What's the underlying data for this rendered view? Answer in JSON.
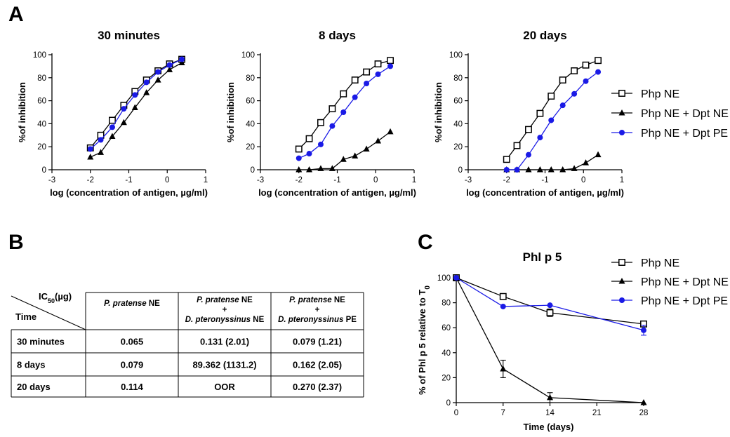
{
  "panel_letters": {
    "a": "A",
    "b": "B",
    "c": "C"
  },
  "colors": {
    "php_ne": "#000000",
    "dpt_ne": "#000000",
    "dpt_pe": "#1a1ae6",
    "table_border": "#000000"
  },
  "legend_a": [
    {
      "key": "php_ne",
      "label": "Php NE",
      "marker": "open-square"
    },
    {
      "key": "dpt_ne",
      "label": "Php NE + Dpt NE",
      "marker": "triangle"
    },
    {
      "key": "dpt_pe",
      "label": "Php NE + Dpt PE",
      "marker": "circle"
    }
  ],
  "legend_c": [
    {
      "key": "php_ne",
      "label": "Php NE",
      "marker": "open-square"
    },
    {
      "key": "dpt_ne",
      "label": "Php NE + Dpt NE",
      "marker": "triangle"
    },
    {
      "key": "dpt_pe",
      "label": "Php NE + Dpt PE",
      "marker": "circle"
    }
  ],
  "table": {
    "corner_top": "IC",
    "corner_sub": "50",
    "corner_unit": "(µg)",
    "corner_bottom": "Time",
    "headers": [
      {
        "line1_it": "P. pratense",
        "line1": " NE",
        "line2": "",
        "line3_it": "",
        "line3": ""
      },
      {
        "line1_it": "P. pratense",
        "line1": " NE",
        "line2": "+",
        "line3_it": "D. pteronyssinus",
        "line3": " NE"
      },
      {
        "line1_it": "P. pratense",
        "line1": " NE",
        "line2": "+",
        "line3_it": "D. pteronyssinus",
        "line3": " PE"
      }
    ],
    "rows": [
      {
        "time": "30 minutes",
        "cells": [
          "0.065",
          "0.131 (2.01)",
          "0.079 (1.21)"
        ]
      },
      {
        "time": "8 days",
        "cells": [
          "0.079",
          "89.362  (1131.2)",
          "0.162  (2.05)"
        ]
      },
      {
        "time": "20 days",
        "cells": [
          "0.114",
          "OOR",
          "0.270  (2.37)"
        ]
      }
    ]
  },
  "chart_data": [
    {
      "type": "line",
      "panel": "A",
      "title": "30 minutes",
      "xlabel": "log (concentration of antigen, µg/ml)",
      "ylabel": "%of inhibition",
      "xlim": [
        -3,
        1
      ],
      "ylim": [
        0,
        100
      ],
      "xticks": [
        "-3",
        "-2",
        "-1",
        "0",
        "1"
      ],
      "yticks": [
        "0",
        "20",
        "40",
        "60",
        "80",
        "100"
      ],
      "series": [
        {
          "key": "php_ne",
          "name": "Php NE",
          "x": [
            -2,
            -1.73,
            -1.43,
            -1.13,
            -0.84,
            -0.54,
            -0.24,
            0.06,
            0.38
          ],
          "y": [
            19,
            30,
            43,
            56,
            68,
            78,
            86,
            92,
            96
          ]
        },
        {
          "key": "dpt_ne",
          "name": "Php NE + Dpt NE",
          "x": [
            -2,
            -1.73,
            -1.43,
            -1.13,
            -0.84,
            -0.54,
            -0.24,
            0.06,
            0.38
          ],
          "y": [
            11,
            15,
            29,
            41,
            54,
            67,
            78,
            87,
            93
          ]
        },
        {
          "key": "dpt_pe",
          "name": "Php NE + Dpt PE",
          "x": [
            -2,
            -1.73,
            -1.43,
            -1.13,
            -0.84,
            -0.54,
            -0.24,
            0.06,
            0.38
          ],
          "y": [
            18,
            26,
            37,
            53,
            65,
            76,
            85,
            91,
            96
          ]
        }
      ]
    },
    {
      "type": "line",
      "panel": "A",
      "title": "8 days",
      "xlabel": "log (concentration of antigen, µg/ml)",
      "ylabel": "%of inhibition",
      "xlim": [
        -3,
        1
      ],
      "ylim": [
        0,
        100
      ],
      "xticks": [
        "-3",
        "-2",
        "-1",
        "0",
        "1"
      ],
      "yticks": [
        "0",
        "20",
        "40",
        "60",
        "80",
        "100"
      ],
      "series": [
        {
          "key": "php_ne",
          "name": "Php NE",
          "x": [
            -2,
            -1.73,
            -1.43,
            -1.13,
            -0.84,
            -0.54,
            -0.24,
            0.06,
            0.38
          ],
          "y": [
            18,
            27,
            41,
            53,
            66,
            78,
            85,
            92,
            95
          ]
        },
        {
          "key": "dpt_ne",
          "name": "Php NE + Dpt NE",
          "x": [
            -2,
            -1.73,
            -1.43,
            -1.13,
            -0.84,
            -0.54,
            -0.24,
            0.06,
            0.38
          ],
          "y": [
            0,
            0,
            1,
            1,
            9,
            12,
            18,
            25,
            33
          ]
        },
        {
          "key": "dpt_pe",
          "name": "Php NE + Dpt PE",
          "x": [
            -2,
            -1.73,
            -1.43,
            -1.13,
            -0.84,
            -0.54,
            -0.24,
            0.06,
            0.38
          ],
          "y": [
            10,
            14,
            22,
            38,
            50,
            63,
            75,
            83,
            90
          ]
        }
      ]
    },
    {
      "type": "line",
      "panel": "A",
      "title": "20 days",
      "xlabel": "log (concentration of antigen, µg/ml)",
      "ylabel": "%of inhibition",
      "xlim": [
        -3,
        1
      ],
      "ylim": [
        0,
        100
      ],
      "xticks": [
        "-3",
        "-2",
        "-1",
        "0",
        "1"
      ],
      "yticks": [
        "0",
        "20",
        "40",
        "60",
        "80",
        "100"
      ],
      "series": [
        {
          "key": "php_ne",
          "name": "Php NE",
          "x": [
            -2,
            -1.73,
            -1.43,
            -1.13,
            -0.84,
            -0.54,
            -0.24,
            0.06,
            0.38
          ],
          "y": [
            9,
            21,
            35,
            49,
            64,
            78,
            86,
            91,
            95
          ]
        },
        {
          "key": "dpt_ne",
          "name": "Php NE + Dpt NE",
          "x": [
            -2,
            -1.73,
            -1.43,
            -1.13,
            -0.84,
            -0.54,
            -0.24,
            0.06,
            0.38
          ],
          "y": [
            0,
            0,
            0,
            0,
            0,
            0,
            1,
            6,
            13
          ]
        },
        {
          "key": "dpt_pe",
          "name": "Php NE + Dpt PE",
          "x": [
            -2,
            -1.73,
            -1.43,
            -1.13,
            -0.84,
            -0.54,
            -0.24,
            0.06,
            0.38
          ],
          "y": [
            0,
            0,
            13,
            28,
            43,
            56,
            66,
            77,
            85
          ]
        }
      ]
    },
    {
      "type": "line",
      "panel": "C",
      "title": "Phl p 5",
      "xlabel": "Time (days)",
      "ylabel": "% of Phl p 5 relative to T",
      "ylabel_sub": "0",
      "xlim": [
        0,
        28
      ],
      "ylim": [
        0,
        100
      ],
      "xticks": [
        "0",
        "7",
        "14",
        "21",
        "28"
      ],
      "yticks": [
        "0",
        "20",
        "40",
        "60",
        "80",
        "100"
      ],
      "series": [
        {
          "key": "php_ne",
          "name": "Php NE",
          "x": [
            0,
            7,
            14,
            28
          ],
          "y": [
            100,
            85,
            72,
            63
          ],
          "err": [
            0,
            1,
            3,
            2
          ]
        },
        {
          "key": "dpt_ne",
          "name": "Php NE + Dpt NE",
          "x": [
            0,
            7,
            14,
            28
          ],
          "y": [
            100,
            27,
            4,
            0
          ],
          "err": [
            0,
            7,
            4,
            0
          ]
        },
        {
          "key": "dpt_pe",
          "name": "Php NE + Dpt PE",
          "x": [
            0,
            7,
            14,
            28
          ],
          "y": [
            100,
            77,
            78,
            58
          ],
          "err": [
            0,
            0,
            0,
            4
          ]
        }
      ]
    }
  ]
}
